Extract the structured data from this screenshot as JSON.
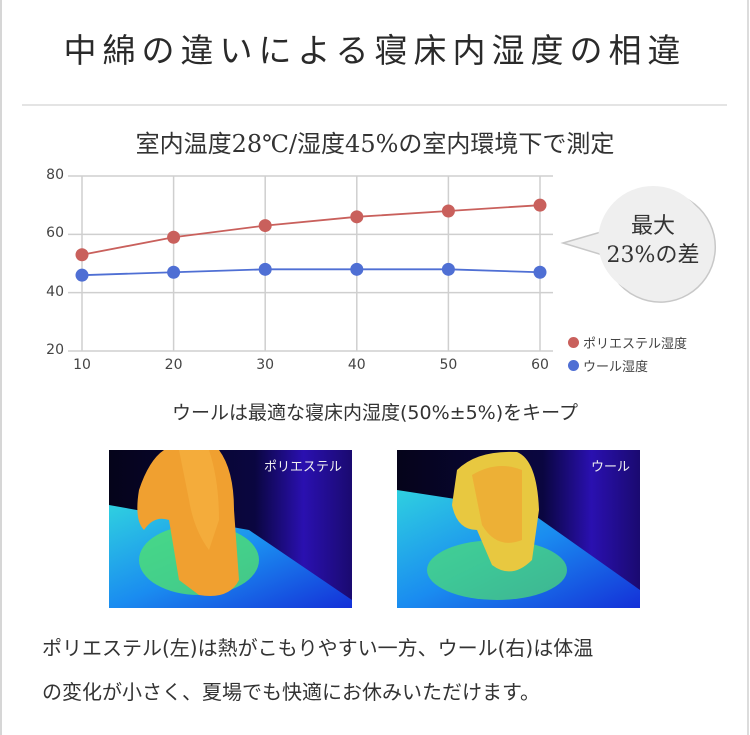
{
  "title": "中綿の違いによる寝床内湿度の相違",
  "subtitle": "室内温度28℃/湿度45%の室内環境下で測定",
  "callout": {
    "line1": "最大",
    "line2": "23%の差"
  },
  "legend": [
    {
      "label": "ポリエステル湿度",
      "color": "#c9605c"
    },
    {
      "label": "ウール湿度",
      "color": "#4f6fd4"
    }
  ],
  "caption": "ウールは最適な寝床内湿度(50%±5%)をキープ",
  "images": [
    {
      "label": "ポリエステル"
    },
    {
      "label": "ウール"
    }
  ],
  "footer": {
    "line1": "ポリエステル(左)は熱がこもりやすい一方、ウール(右)は体温",
    "line2": "の変化が小さく、夏場でも快適にお休みいただけます。"
  },
  "chart_data": {
    "type": "line",
    "title": "室内温度28℃/湿度45%の室内環境下で測定",
    "x": [
      10,
      20,
      30,
      40,
      50,
      60
    ],
    "x_ticks": [
      "10",
      "20",
      "30",
      "40",
      "50",
      "60"
    ],
    "y_ticks": [
      "80",
      "60",
      "40",
      "20"
    ],
    "ylim": [
      20,
      80
    ],
    "xlabel": "",
    "ylabel": "",
    "grid": true,
    "legend_position": "right-bottom",
    "series": [
      {
        "name": "ポリエステル湿度",
        "color": "#c9605c",
        "values": [
          53,
          59,
          63,
          66,
          68,
          70
        ]
      },
      {
        "name": "ウール湿度",
        "color": "#4f6fd4",
        "values": [
          46,
          47,
          48,
          48,
          48,
          47
        ]
      }
    ],
    "annotations": [
      "最大 23%の差"
    ]
  }
}
